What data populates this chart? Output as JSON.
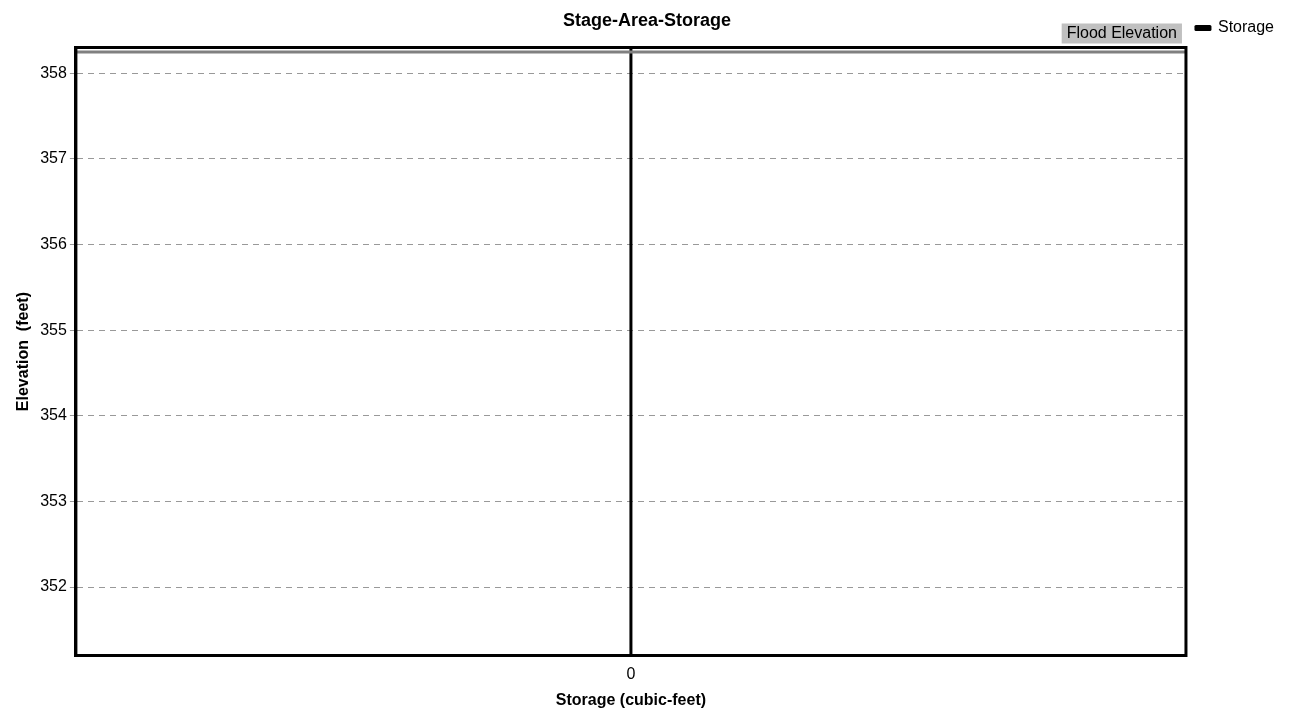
{
  "chart_data": {
    "type": "line",
    "title": "Stage-Area-Storage",
    "xlabel": "Storage (cubic-feet)",
    "ylabel": "Elevation  (feet)",
    "categories": [
      null,
      "0",
      null
    ],
    "series": [
      {
        "name": "Storage",
        "color": "#000000",
        "x": [
          "0",
          "0"
        ],
        "values": [
          351.2,
          358.3
        ]
      }
    ],
    "ylim": [
      351.2,
      358.3
    ],
    "yticks": [
      352,
      353,
      354,
      355,
      356,
      357,
      358
    ],
    "ref_lines": [
      {
        "axis": "y",
        "value": 358.25,
        "label": "Flood Elevation",
        "color": "#808080"
      }
    ],
    "grid": "y",
    "legend": "top right",
    "marker": "none",
    "line_style": "solid"
  }
}
